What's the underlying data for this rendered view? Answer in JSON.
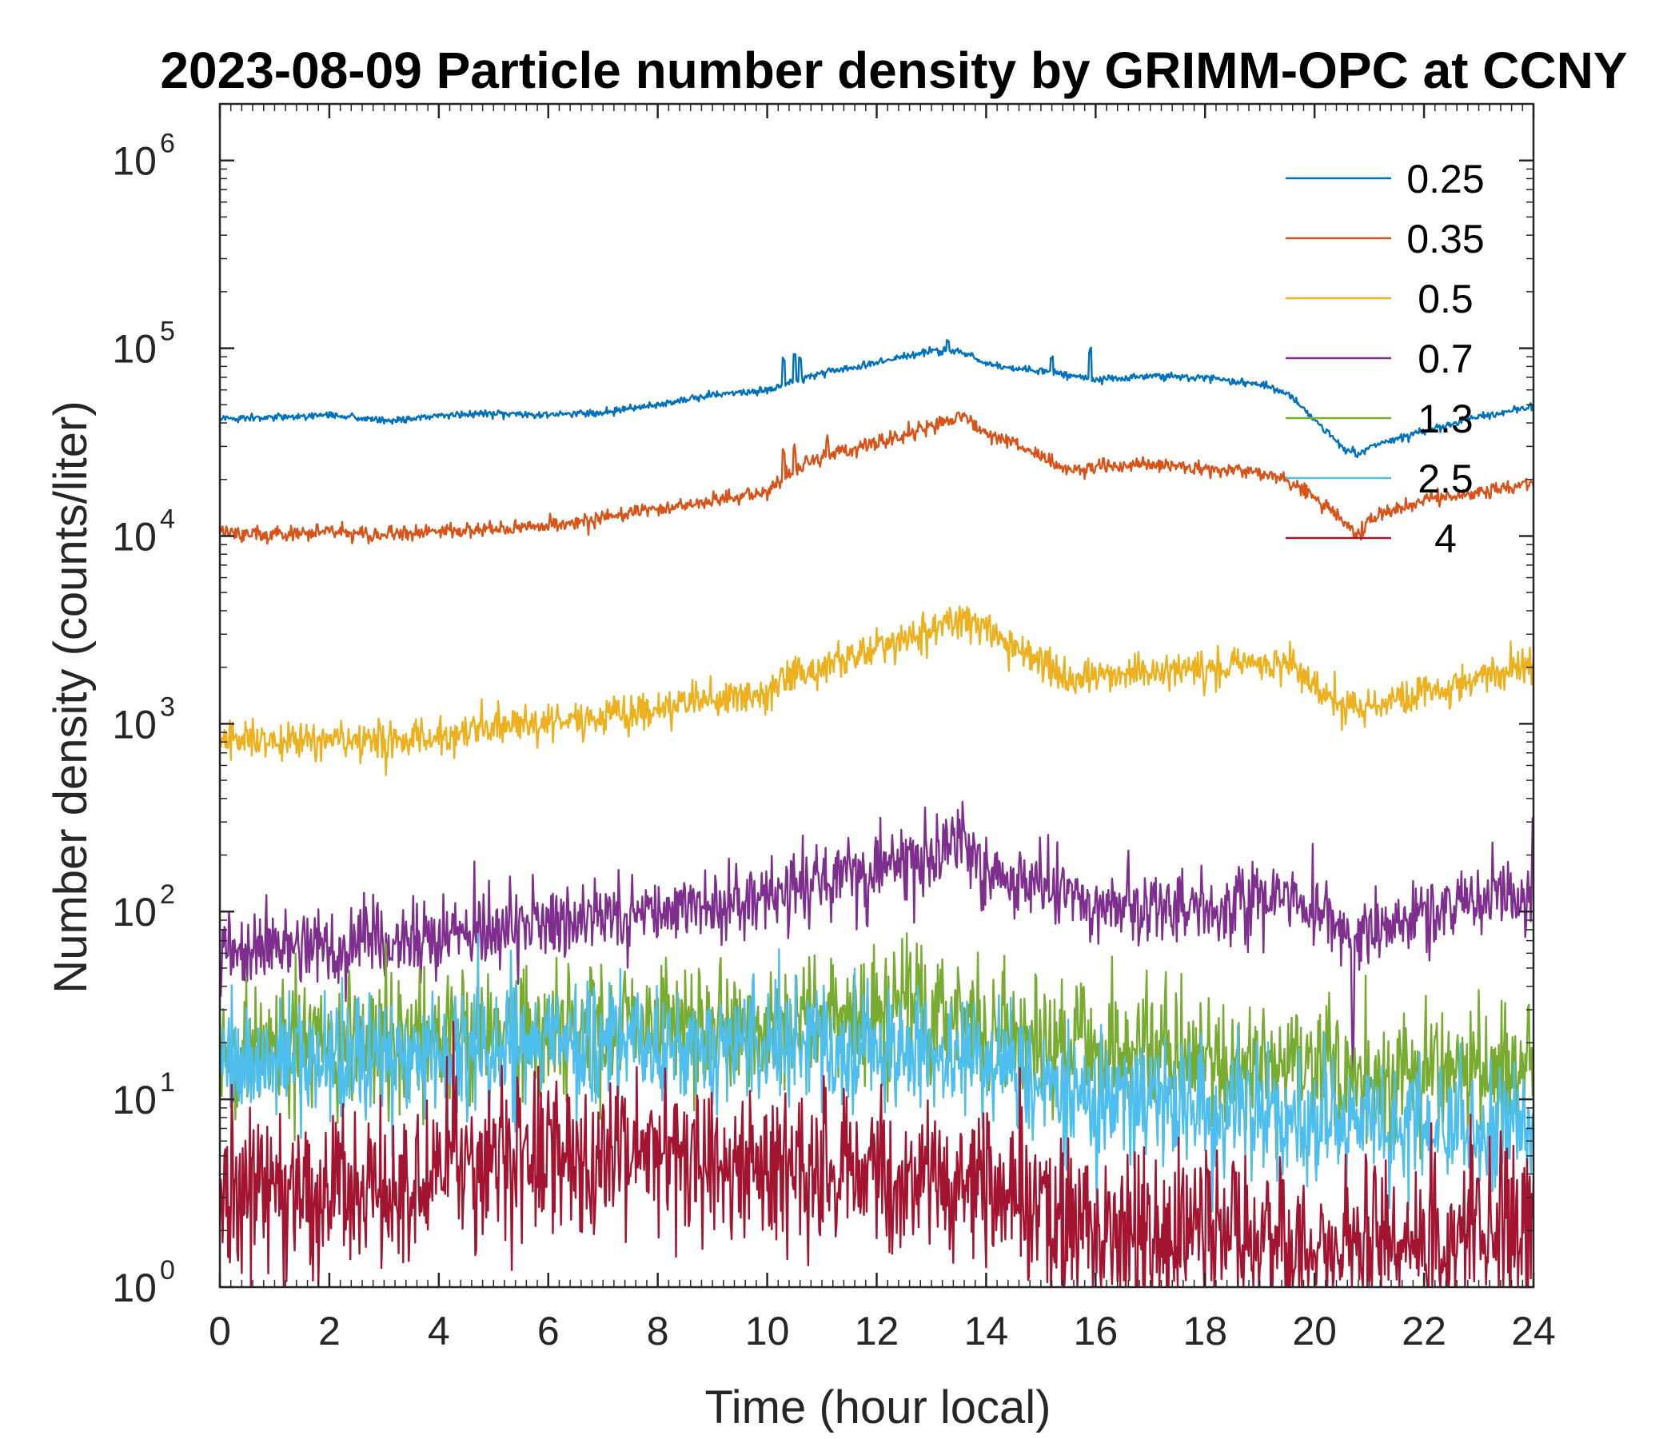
{
  "chart_data": {
    "type": "line",
    "title": "2023-08-09 Particle number density by GRIMM-OPC at CCNY",
    "xlabel": "Time (hour local)",
    "ylabel": "Number density (counts/liter)",
    "xlim": [
      0,
      24
    ],
    "ylim": [
      1,
      2000000
    ],
    "yscale": "log",
    "xticks": [
      0,
      2,
      4,
      6,
      8,
      10,
      12,
      14,
      16,
      18,
      20,
      22,
      24
    ],
    "xtick_labels": [
      "0",
      "2",
      "4",
      "6",
      "8",
      "10",
      "12",
      "14",
      "16",
      "18",
      "20",
      "22",
      "24"
    ],
    "yticks": [
      {
        "value": 1,
        "base": "10",
        "exp": "0"
      },
      {
        "value": 10,
        "base": "10",
        "exp": "1"
      },
      {
        "value": 100,
        "base": "10",
        "exp": "2"
      },
      {
        "value": 1000,
        "base": "10",
        "exp": "3"
      },
      {
        "value": 10000,
        "base": "10",
        "exp": "4"
      },
      {
        "value": 100000,
        "base": "10",
        "exp": "5"
      },
      {
        "value": 1000000,
        "base": "10",
        "exp": "6"
      }
    ],
    "grid": false,
    "legend_position": "top-right",
    "series": [
      {
        "name": "0.25",
        "color": "#0072BD",
        "noise": 0.01,
        "spikes": [
          [
            10.3,
            1.35
          ],
          [
            10.5,
            1.4
          ],
          [
            10.6,
            1.3
          ],
          [
            13.3,
            1.15
          ],
          [
            15.2,
            1.2
          ],
          [
            15.9,
            1.4
          ]
        ],
        "x": [
          0,
          1,
          2,
          3,
          4,
          5,
          6,
          7,
          8,
          9,
          10,
          10.4,
          11,
          12,
          13,
          13.6,
          14,
          15,
          15.5,
          16,
          17,
          18,
          19,
          19.5,
          20,
          20.5,
          20.8,
          21,
          22,
          23,
          24
        ],
        "values": [
          42000,
          43000,
          44000,
          41000,
          44000,
          45000,
          44500,
          45500,
          50000,
          56000,
          60000,
          66000,
          74000,
          83000,
          97000,
          95000,
          82000,
          76000,
          72000,
          68000,
          71000,
          70000,
          64000,
          58000,
          42000,
          30000,
          27000,
          30000,
          36000,
          43000,
          49000
        ]
      },
      {
        "name": "0.35",
        "color": "#D95319",
        "noise": 0.02,
        "spikes": [
          [
            10.3,
            1.35
          ],
          [
            10.5,
            1.3
          ],
          [
            11.1,
            1.25
          ]
        ],
        "x": [
          0,
          1,
          2,
          3,
          4,
          5,
          6,
          7,
          8,
          9,
          10,
          10.4,
          11,
          12,
          13,
          13.6,
          14,
          15,
          15.5,
          16,
          17,
          18,
          19,
          19.5,
          20,
          20.5,
          20.8,
          21,
          22,
          23,
          24
        ],
        "values": [
          10500,
          10200,
          10500,
          10000,
          10600,
          11000,
          11300,
          12500,
          14000,
          15500,
          17000,
          22000,
          26000,
          31000,
          38000,
          44000,
          35000,
          27000,
          22000,
          23000,
          24500,
          23000,
          22000,
          20000,
          16000,
          12000,
          10000,
          12500,
          15500,
          17000,
          19500
        ]
      },
      {
        "name": "0.5",
        "color": "#EDB120",
        "noise": 0.05,
        "spikes": [],
        "x": [
          0,
          1,
          2,
          3,
          4,
          5,
          6,
          7,
          8,
          9,
          10,
          10.4,
          11,
          12,
          13,
          13.6,
          14,
          15,
          15.5,
          16,
          17,
          18,
          19,
          19.5,
          20,
          20.5,
          20.8,
          21,
          22,
          23,
          24
        ],
        "values": [
          850,
          830,
          800,
          790,
          850,
          950,
          1000,
          1100,
          1200,
          1350,
          1450,
          1800,
          2000,
          2500,
          3200,
          3700,
          3000,
          2200,
          1700,
          1800,
          1900,
          2000,
          2100,
          2100,
          1700,
          1200,
          1100,
          1250,
          1500,
          1800,
          2000
        ]
      },
      {
        "name": "0.7",
        "color": "#7E2F8E",
        "noise": 0.1,
        "spikes": [
          [
            20.7,
            0.3
          ],
          [
            24,
            1.6
          ]
        ],
        "x": [
          0,
          1,
          2,
          3,
          4,
          5,
          6,
          7,
          8,
          9,
          10,
          10.4,
          11,
          12,
          13,
          13.6,
          14,
          15,
          15.5,
          16,
          17,
          18,
          19,
          19.5,
          20,
          20.5,
          20.8,
          21,
          22,
          23,
          24
        ],
        "values": [
          60,
          62,
          66,
          70,
          75,
          80,
          85,
          92,
          100,
          110,
          120,
          130,
          145,
          165,
          200,
          215,
          170,
          135,
          120,
          110,
          105,
          112,
          120,
          115,
          100,
          78,
          70,
          76,
          95,
          115,
          125
        ]
      },
      {
        "name": "1.3",
        "color": "#77AC30",
        "noise": 0.17,
        "spikes": [],
        "x": [
          0,
          2,
          4,
          6,
          8,
          10,
          12,
          13,
          14,
          15,
          16,
          18,
          20,
          21,
          22,
          24
        ],
        "values": [
          17,
          19,
          21,
          23,
          25,
          26,
          28,
          30,
          24,
          19,
          18,
          17,
          15,
          12,
          14,
          16
        ]
      },
      {
        "name": "2.5",
        "color": "#4DBEEE",
        "noise": 0.17,
        "spikes": [],
        "x": [
          0,
          2,
          4,
          6,
          8,
          10,
          12,
          14,
          15,
          16,
          18,
          20,
          22,
          24
        ],
        "values": [
          15,
          16,
          17,
          19,
          20,
          19,
          18,
          16,
          12,
          10,
          9,
          8,
          7,
          8
        ]
      },
      {
        "name": "4",
        "color": "#A2142F",
        "noise": 0.22,
        "spikes": [],
        "x": [
          0,
          3,
          5,
          8,
          10,
          12,
          14,
          15,
          16,
          18,
          20,
          22,
          24
        ],
        "values": [
          3,
          3.5,
          4.5,
          5,
          4,
          4,
          3.5,
          2.5,
          2,
          2,
          1.8,
          1.8,
          2
        ]
      }
    ]
  }
}
